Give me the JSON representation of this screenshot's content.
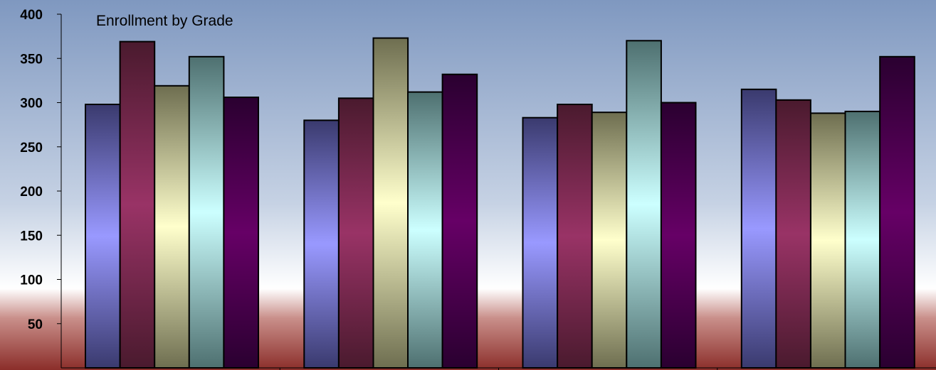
{
  "chart_data": {
    "type": "bar",
    "title": "Enrollment by Grade",
    "xlabel": "",
    "ylabel": "",
    "categories": [
      "",
      "",
      "",
      ""
    ],
    "ylim": [
      0,
      400
    ],
    "yticks": [
      50,
      100,
      150,
      200,
      250,
      300,
      350,
      400
    ],
    "grid": false,
    "legend": "none",
    "series": [
      {
        "values": [
          298,
          280,
          283,
          315
        ],
        "colors": [
          "#3a3a6e",
          "#9999ff",
          "#3a3a6e"
        ]
      },
      {
        "values": [
          369,
          305,
          298,
          303
        ],
        "colors": [
          "#4a1a2e",
          "#993366",
          "#4a1a2e"
        ]
      },
      {
        "values": [
          319,
          373,
          289,
          288
        ],
        "colors": [
          "#6e6e50",
          "#ffffcc",
          "#6e6e50"
        ]
      },
      {
        "values": [
          352,
          312,
          370,
          290
        ],
        "colors": [
          "#4e7070",
          "#ccffff",
          "#4e7070"
        ]
      },
      {
        "values": [
          306,
          332,
          300,
          352
        ],
        "colors": [
          "#2a0030",
          "#660066",
          "#2a0030"
        ]
      }
    ]
  },
  "background": {
    "top": "#7f98c0",
    "middle": "#ffffff",
    "bottom": "#8b2e2a"
  }
}
